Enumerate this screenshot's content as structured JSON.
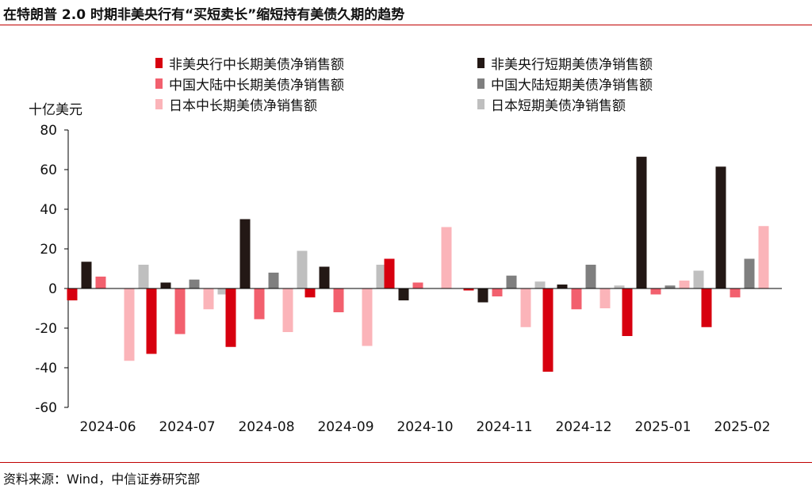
{
  "title": "在特朗普 2.0 时期非美央行有“买短卖长”缩短持有美债久期的趋势",
  "source": "资料来源：Wind，中信证券研究部",
  "chart_data": {
    "type": "bar",
    "ylabel": "十亿美元",
    "ylim": [
      -60,
      80
    ],
    "yticks": [
      "80",
      "60",
      "40",
      "20",
      "0",
      "-20",
      "-40",
      "-60"
    ],
    "ytick_values": [
      80,
      60,
      40,
      20,
      0,
      -20,
      -40,
      -60
    ],
    "grid": false,
    "legend_position": "top",
    "categories": [
      "2024-06",
      "2024-07",
      "2024-08",
      "2024-09",
      "2024-10",
      "2024-11",
      "2024-12",
      "2025-01",
      "2025-02"
    ],
    "series": [
      {
        "name": "非美央行中长期美债净销售额",
        "color": "#d7000f",
        "values": [
          -6,
          -33,
          -29.5,
          -4.5,
          15,
          -1,
          -42,
          -24,
          -19.5
        ]
      },
      {
        "name": "非美央行短期美债净销售额",
        "color": "#231815",
        "values": [
          13.5,
          3,
          35,
          11,
          -6,
          -7,
          2,
          66.5,
          61.5
        ]
      },
      {
        "name": "中国大陆中长期美债净销售额",
        "color": "#f2606e",
        "values": [
          6,
          -23,
          -15.5,
          -12,
          3,
          -4,
          -10.5,
          -3,
          -4.5
        ]
      },
      {
        "name": "中国大陆短期美债净销售额",
        "color": "#7f7f7f",
        "values": [
          0,
          4.5,
          8,
          0,
          0,
          6.5,
          12,
          1.5,
          15
        ]
      },
      {
        "name": "日本中长期美债净销售额",
        "color": "#fbb4b9",
        "values": [
          -36.5,
          -10.5,
          -22,
          -29,
          31,
          -19.5,
          -10,
          4,
          31.5
        ]
      },
      {
        "name": "日本短期美债净销售额",
        "color": "#bfbfbf",
        "values": [
          12,
          -3,
          19,
          12,
          0,
          3.5,
          1.5,
          9,
          0
        ]
      }
    ]
  }
}
